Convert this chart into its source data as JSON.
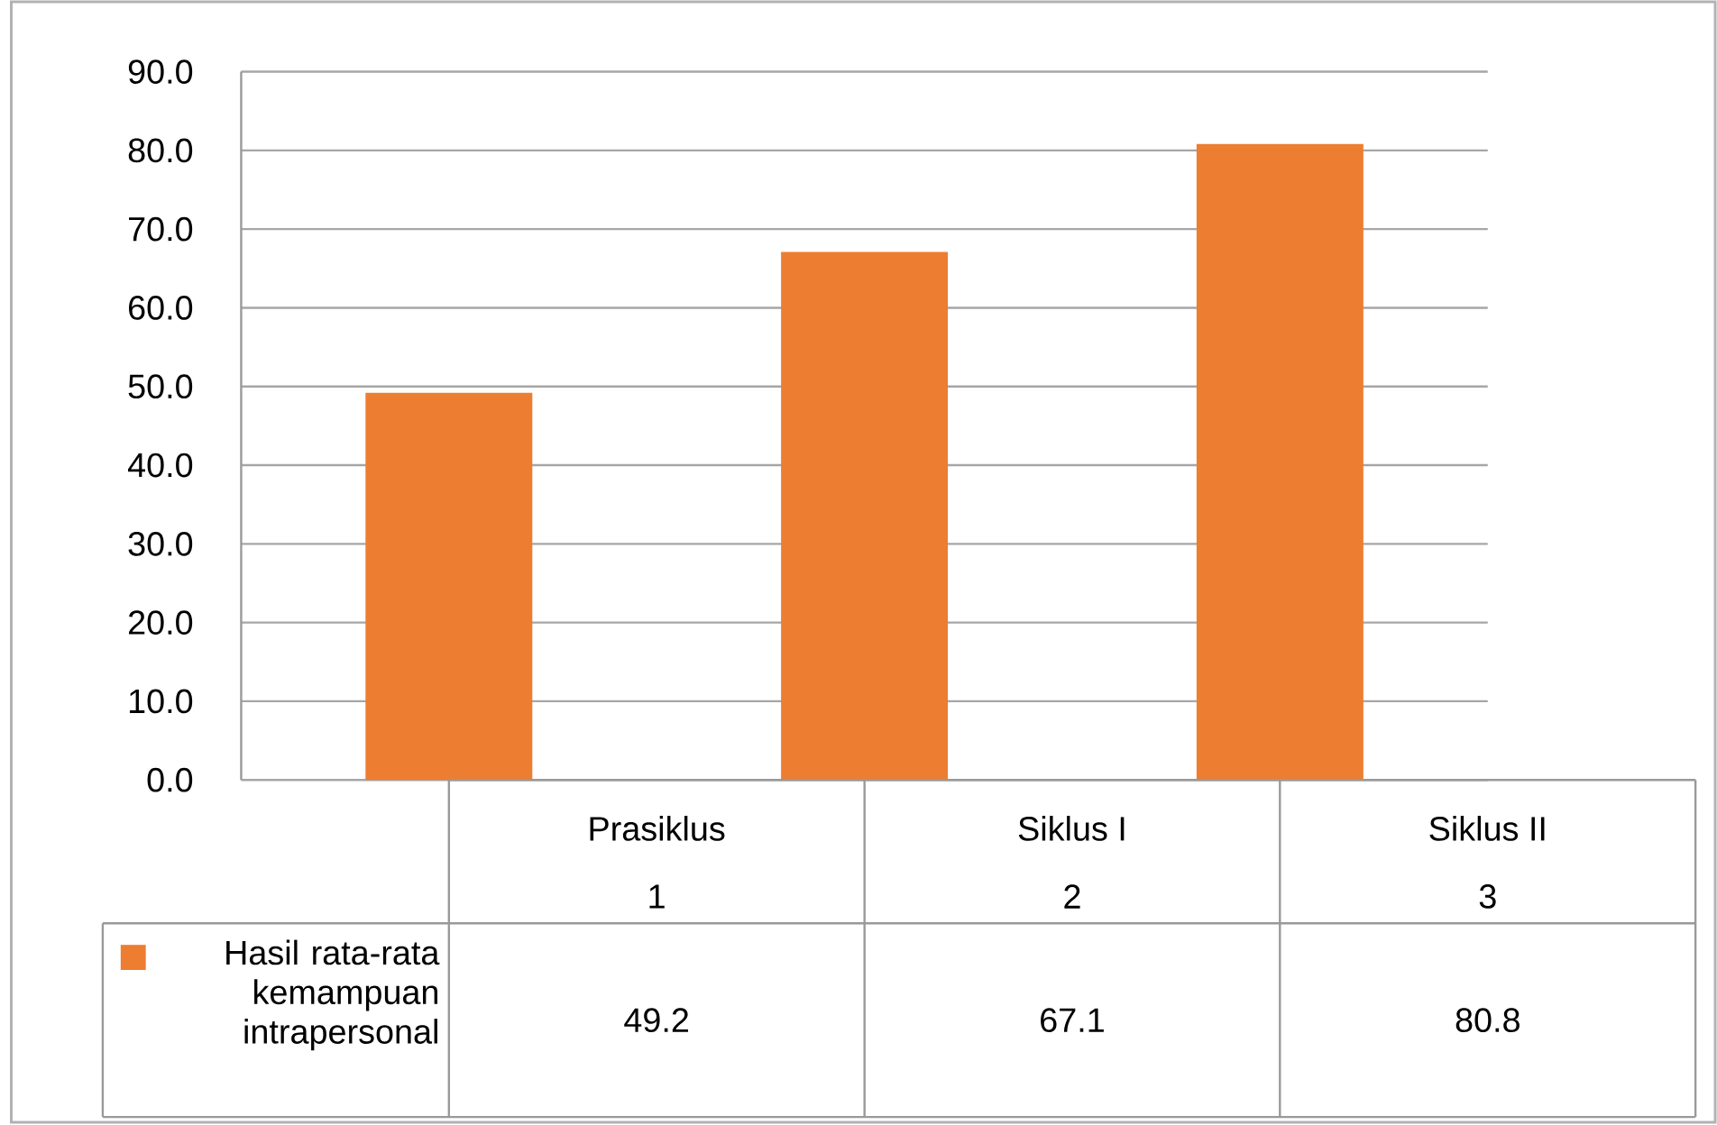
{
  "chart_data": {
    "type": "bar",
    "categories": [
      "Prasiklus",
      "Siklus I",
      "Siklus II"
    ],
    "annotations": [
      "1",
      "2",
      "3"
    ],
    "series": [
      {
        "name": "Hasil rata-rata kemampuan intrapersonal",
        "color": "#ed7d31",
        "values": [
          49.2,
          67.1,
          80.8
        ]
      }
    ],
    "ylim": [
      0,
      90
    ],
    "yticks": [
      {
        "value": 0,
        "label": "0.0"
      },
      {
        "value": 10,
        "label": "10.0"
      },
      {
        "value": 20,
        "label": "20.0"
      },
      {
        "value": 30,
        "label": "30.0"
      },
      {
        "value": 40,
        "label": "40.0"
      },
      {
        "value": 50,
        "label": "50.0"
      },
      {
        "value": 60,
        "label": "60.0"
      },
      {
        "value": 70,
        "label": "70.0"
      },
      {
        "value": 80,
        "label": "80.0"
      },
      {
        "value": 90,
        "label": "90.0"
      }
    ],
    "grid": "y",
    "legend": "bottom left",
    "data_labels": true
  }
}
